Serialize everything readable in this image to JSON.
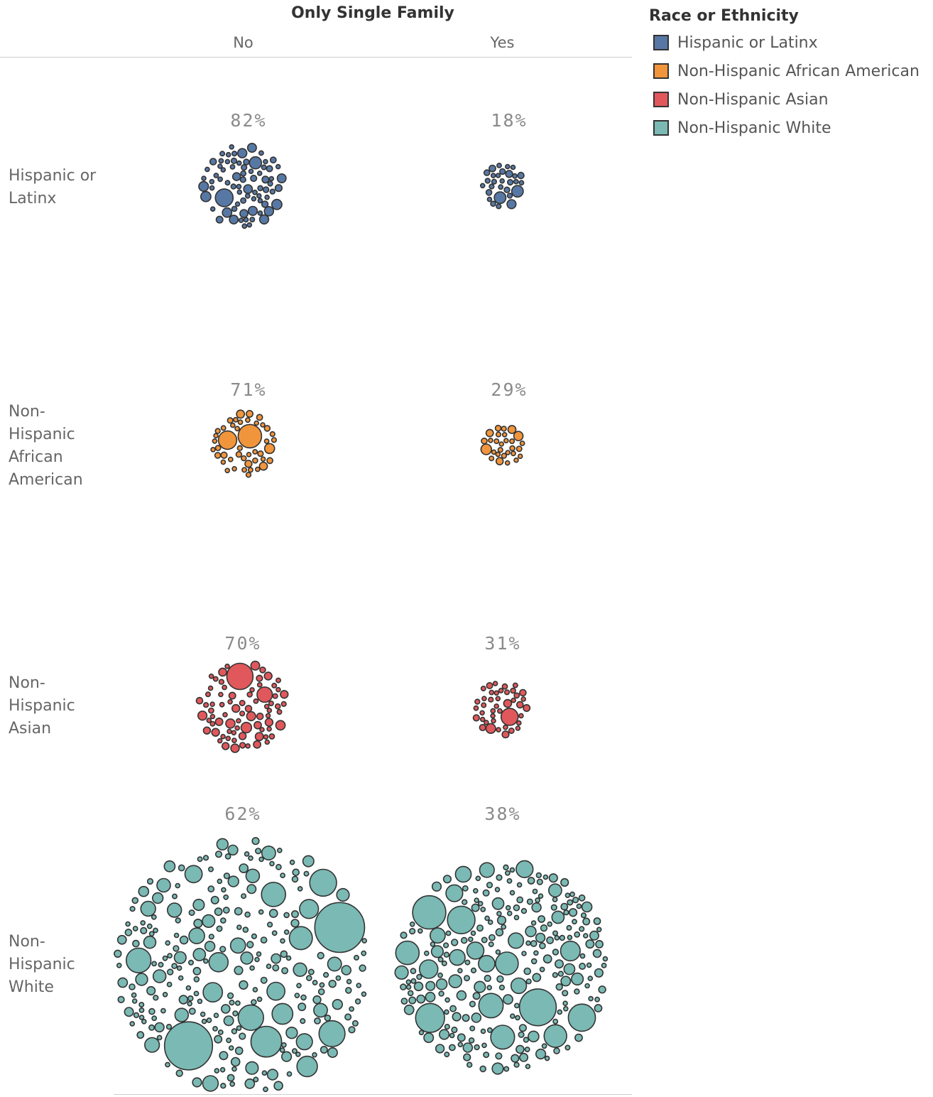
{
  "header": {
    "column_field": "Only Single Family",
    "columns": [
      "No",
      "Yes"
    ]
  },
  "rows": [
    {
      "label": "Hispanic or Latinx"
    },
    {
      "label": "Non-Hispanic African American"
    },
    {
      "label": "Non-Hispanic Asian"
    },
    {
      "label": "Non-Hispanic White"
    }
  ],
  "legend": {
    "title": "Race or Ethnicity",
    "items": [
      {
        "label": "Hispanic or Latinx",
        "color": "#5778a4"
      },
      {
        "label": "Non-Hispanic African American",
        "color": "#f1953c"
      },
      {
        "label": "Non-Hispanic Asian",
        "color": "#e0585b"
      },
      {
        "label": "Non-Hispanic White",
        "color": "#7ab9b4"
      }
    ]
  },
  "chart_data": {
    "type": "packed-bubble",
    "rows": [
      "Hispanic or Latinx",
      "Non-Hispanic African American",
      "Non-Hispanic Asian",
      "Non-Hispanic White"
    ],
    "columns": [
      "No",
      "Yes"
    ],
    "cells": [
      {
        "row": "Hispanic or Latinx",
        "column": "No",
        "percent_label": "82%",
        "percent": 82
      },
      {
        "row": "Hispanic or Latinx",
        "column": "Yes",
        "percent_label": "18%",
        "percent": 18
      },
      {
        "row": "Non-Hispanic African American",
        "column": "No",
        "percent_label": "71%",
        "percent": 71
      },
      {
        "row": "Non-Hispanic African American",
        "column": "Yes",
        "percent_label": "29%",
        "percent": 29
      },
      {
        "row": "Non-Hispanic Asian",
        "column": "No",
        "percent_label": "70%",
        "percent": 70
      },
      {
        "row": "Non-Hispanic Asian",
        "column": "Yes",
        "percent_label": "31%",
        "percent": 31
      },
      {
        "row": "Non-Hispanic White",
        "column": "No",
        "percent_label": "62%",
        "percent": 62
      },
      {
        "row": "Non-Hispanic White",
        "column": "Yes",
        "percent_label": "38%",
        "percent": 38
      }
    ]
  }
}
